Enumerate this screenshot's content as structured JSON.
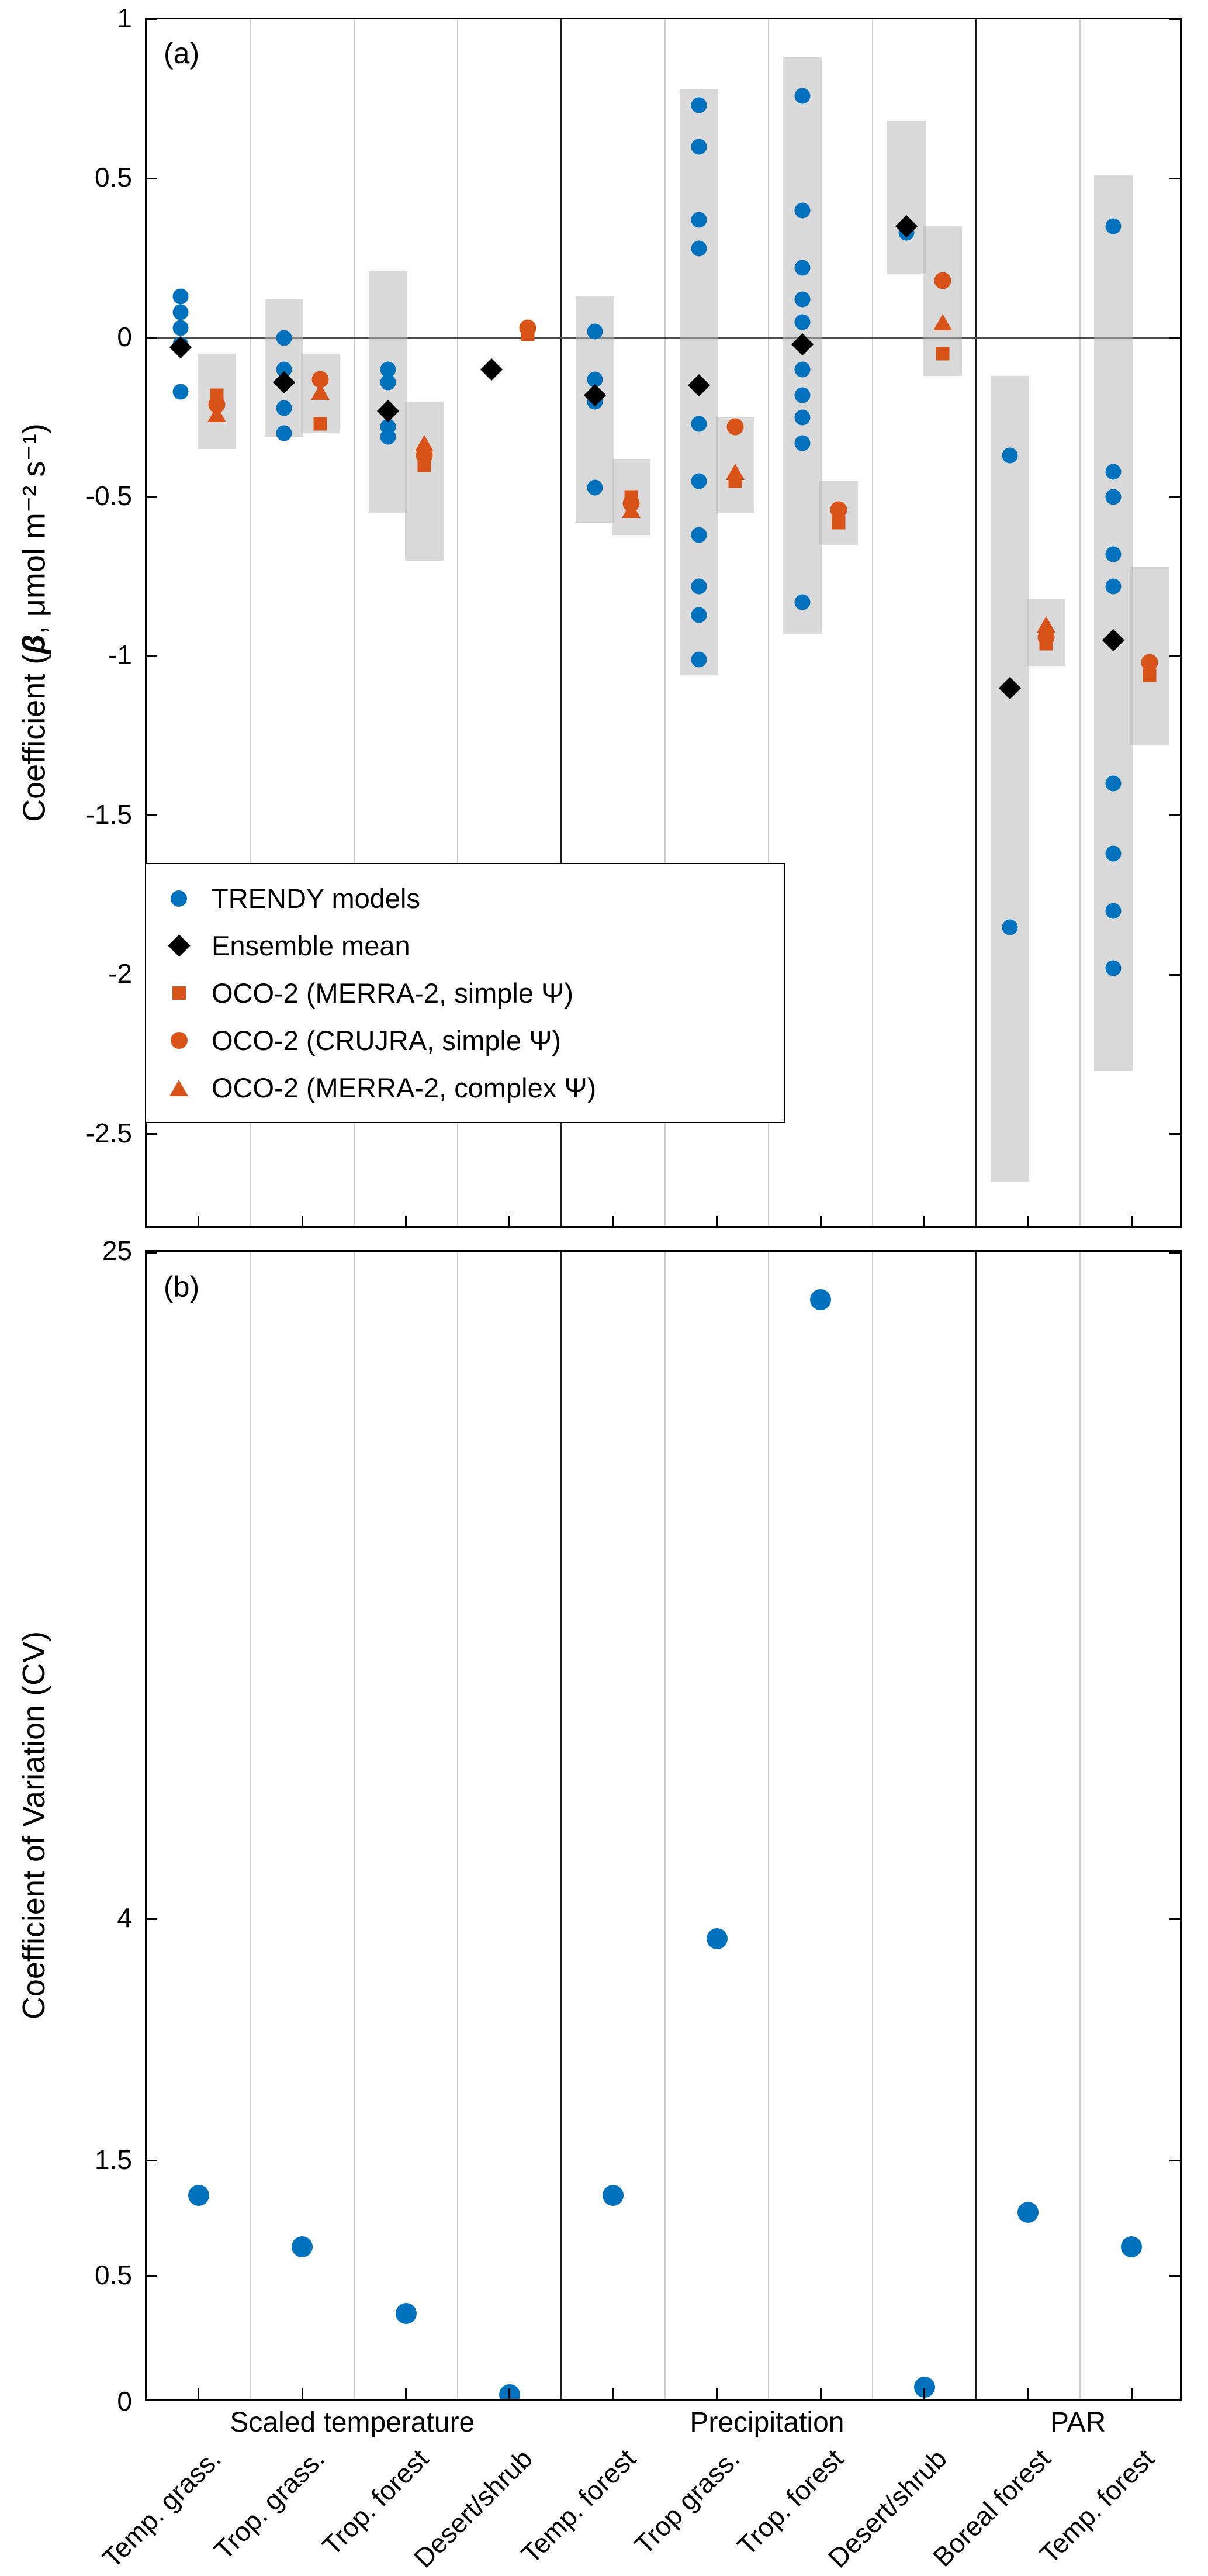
{
  "chart_data": [
    {
      "type": "scatter",
      "panel": "a",
      "title": "(a)",
      "ylabel": "Coefficient (β, μmol m⁻² s⁻¹)",
      "ylabel_parts": {
        "prefix": "Coefficient (",
        "beta": "β",
        "suffix": ", μmol m⁻² s⁻¹)"
      },
      "ylim": [
        -2.8,
        1.0
      ],
      "yticks": [
        {
          "label": "1",
          "value": 1
        },
        {
          "label": "0.5",
          "value": 0.5
        },
        {
          "label": "0",
          "value": 0
        },
        {
          "label": "-0.5",
          "value": -0.5
        },
        {
          "label": "-1",
          "value": -1
        },
        {
          "label": "-1.5",
          "value": -1.5
        },
        {
          "label": "-2",
          "value": -2
        },
        {
          "label": "-2.5",
          "value": -2.5
        }
      ],
      "colors": {
        "trendy": "#0072BD",
        "ensemble": "#000000",
        "oco2": "#D95319"
      },
      "group_boundaries": [
        4,
        8
      ],
      "groups": [
        {
          "label": "Scaled temperature",
          "start": 0,
          "end": 4
        },
        {
          "label": "Precipitation",
          "start": 4,
          "end": 8
        },
        {
          "label": "PAR",
          "start": 8,
          "end": 10
        }
      ],
      "legend": [
        {
          "icon": "blue-circle-icon",
          "label": "TRENDY models"
        },
        {
          "icon": "black-diamond-icon",
          "label": "Ensemble mean"
        },
        {
          "icon": "orange-square-icon",
          "label": "OCO-2 (MERRA-2, simple Ψ)"
        },
        {
          "icon": "orange-circle-icon",
          "label": "OCO-2 (CRUJRA, simple Ψ)"
        },
        {
          "icon": "orange-triangle-icon",
          "label": "OCO-2 (MERRA-2, complex Ψ)"
        }
      ],
      "categories": [
        {
          "label": "Temp. grass.",
          "group": "Scaled temperature",
          "trendy": [
            0.13,
            0.08,
            0.03,
            -0.02,
            -0.17
          ],
          "ensemble": -0.03,
          "trendy_range": null,
          "oco2": {
            "merra2_simple": -0.18,
            "crujra_simple": -0.21,
            "merra2_complex": -0.24
          },
          "oco2_range": [
            -0.05,
            -0.35
          ]
        },
        {
          "label": "Trop. grass.",
          "group": "Scaled temperature",
          "trendy": [
            0.0,
            -0.1,
            -0.14,
            -0.22,
            -0.3
          ],
          "ensemble": -0.14,
          "trendy_range": [
            0.12,
            -0.31
          ],
          "oco2": {
            "merra2_simple": -0.27,
            "crujra_simple": -0.13,
            "merra2_complex": -0.17
          },
          "oco2_range": [
            -0.05,
            -0.3
          ]
        },
        {
          "label": "Trop. forest",
          "group": "Scaled temperature",
          "trendy": [
            -0.1,
            -0.14,
            -0.28,
            -0.31
          ],
          "ensemble": -0.23,
          "trendy_range": [
            0.21,
            -0.55
          ],
          "oco2": {
            "merra2_simple": -0.4,
            "crujra_simple": -0.37,
            "merra2_complex": -0.33
          },
          "oco2_range": [
            -0.2,
            -0.7
          ]
        },
        {
          "label": "Desert/shrub",
          "group": "Scaled temperature",
          "trendy": [],
          "ensemble": -0.1,
          "trendy_range": null,
          "oco2": {
            "merra2_simple": 0.01,
            "crujra_simple": 0.03,
            "merra2_complex": null
          },
          "oco2_range": null
        },
        {
          "label": "Temp. forest",
          "group": "Precipitation",
          "trendy": [
            0.02,
            -0.13,
            -0.2,
            -0.47
          ],
          "ensemble": -0.18,
          "trendy_range": [
            0.13,
            -0.58
          ],
          "oco2": {
            "merra2_simple": -0.5,
            "crujra_simple": -0.52,
            "merra2_complex": -0.54
          },
          "oco2_range": [
            -0.38,
            -0.62
          ]
        },
        {
          "label": "Trop grass.",
          "group": "Precipitation",
          "trendy": [
            0.73,
            0.6,
            0.37,
            0.28,
            -0.27,
            -0.45,
            -0.62,
            -0.78,
            -0.87,
            -1.01
          ],
          "ensemble": -0.15,
          "trendy_range": [
            0.78,
            -1.06
          ],
          "oco2": {
            "merra2_simple": -0.45,
            "crujra_simple": -0.28,
            "merra2_complex": -0.42
          },
          "oco2_range": [
            -0.25,
            -0.55
          ]
        },
        {
          "label": "Trop. forest",
          "group": "Precipitation",
          "trendy": [
            0.76,
            0.4,
            0.22,
            0.12,
            0.05,
            -0.1,
            -0.18,
            -0.25,
            -0.33,
            -0.83
          ],
          "ensemble": -0.02,
          "trendy_range": [
            0.88,
            -0.93
          ],
          "oco2": {
            "merra2_simple": -0.58,
            "crujra_simple": -0.54,
            "merra2_complex": null
          },
          "oco2_range": [
            -0.45,
            -0.65
          ]
        },
        {
          "label": "Desert/shrub",
          "group": "Precipitation",
          "trendy": [
            0.33
          ],
          "ensemble": 0.35,
          "trendy_range": [
            0.68,
            0.2
          ],
          "oco2": {
            "merra2_simple": -0.05,
            "crujra_simple": 0.18,
            "merra2_complex": 0.05
          },
          "oco2_range": [
            0.35,
            -0.12
          ]
        },
        {
          "label": "Boreal forest",
          "group": "PAR",
          "trendy": [
            -0.37,
            -1.85
          ],
          "ensemble": -1.1,
          "trendy_range": [
            -0.12,
            -2.65
          ],
          "oco2": {
            "merra2_simple": -0.96,
            "crujra_simple": -0.94,
            "merra2_complex": -0.9
          },
          "oco2_range": [
            -0.82,
            -1.03
          ]
        },
        {
          "label": "Temp. forest",
          "group": "PAR",
          "trendy": [
            0.35,
            -0.42,
            -0.5,
            -0.68,
            -0.78,
            -1.4,
            -1.62,
            -1.8,
            -1.98
          ],
          "ensemble": -0.95,
          "trendy_range": [
            0.51,
            -2.3
          ],
          "oco2": {
            "merra2_simple": -1.06,
            "crujra_simple": -1.02,
            "merra2_complex": null
          },
          "oco2_range": [
            -0.72,
            -1.28
          ]
        }
      ]
    },
    {
      "type": "scatter",
      "panel": "b",
      "title": "(b)",
      "ylabel": "Coefficient of Variation (CV)",
      "yscale": "nonlinear",
      "yticks": [
        {
          "label": "25",
          "value": 25
        },
        {
          "label": "4",
          "value": 4
        },
        {
          "label": "1.5",
          "value": 1.5
        },
        {
          "label": "0.5",
          "value": 0.5
        },
        {
          "label": "0",
          "value": 0
        }
      ],
      "values": [
        {
          "label": "Temp. grass.",
          "value": 1.2
        },
        {
          "label": "Trop. grass.",
          "value": 0.75
        },
        {
          "label": "Trop. forest",
          "value": 0.35
        },
        {
          "label": "Desert/shrub",
          "value": 0.03
        },
        {
          "label": "Temp. forest",
          "value": 1.2
        },
        {
          "label": "Trop grass.",
          "value": 3.8
        },
        {
          "label": "Trop. forest",
          "value": 23.5
        },
        {
          "label": "Desert/shrub",
          "value": 0.06
        },
        {
          "label": "Boreal forest",
          "value": 1.05
        },
        {
          "label": "Temp. forest",
          "value": 0.75
        }
      ]
    }
  ]
}
